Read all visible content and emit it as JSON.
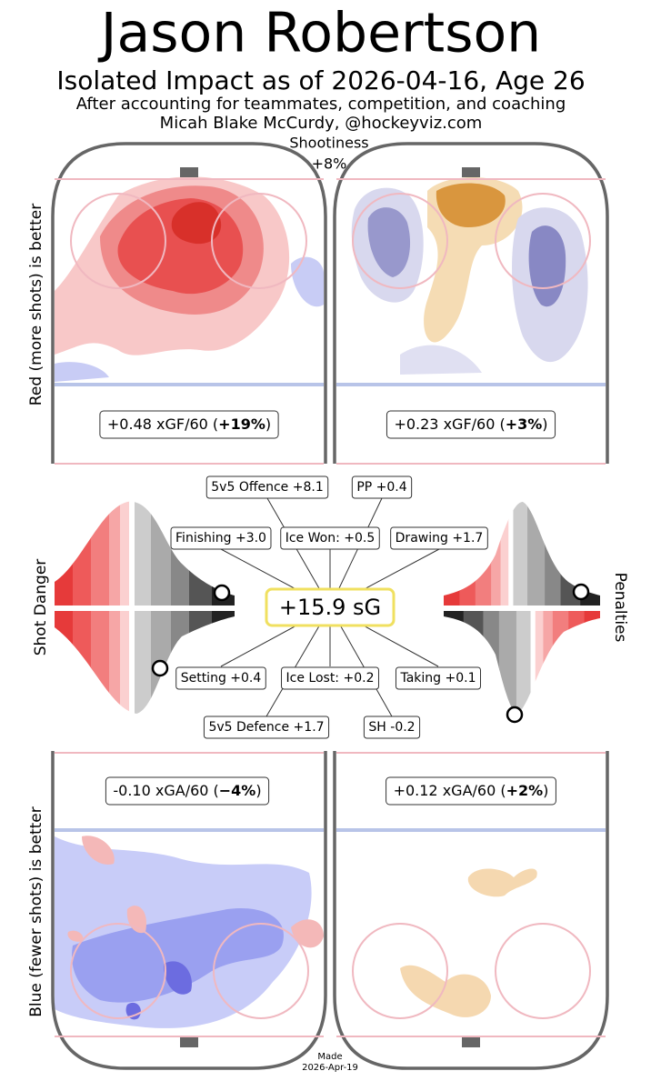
{
  "header": {
    "title": "Jason Robertson",
    "subtitle": "Isolated Impact as of 2026-04-16, Age 26",
    "note": "After accounting for teammates, competition, and coaching",
    "credit": "Micah Blake McCurdy, @hockeyviz.com"
  },
  "shootiness": {
    "label": "Shootiness",
    "value": "+8%"
  },
  "side_labels": {
    "offence": "Red (more shots) is better",
    "defence": "Blue (fewer shots) is better",
    "left": "Shot Danger",
    "right": "Penalties"
  },
  "rinks": [
    {
      "prefix": "+0.48 xGF/60 (",
      "bold": "+19%",
      "suffix": ")"
    },
    {
      "prefix": "+0.23 xGF/60 (",
      "bold": "+3%",
      "suffix": ")"
    },
    {
      "prefix": "-0.10 xGA/60 (",
      "bold": "−4%",
      "suffix": ")"
    },
    {
      "prefix": "+0.12 xGA/60 (",
      "bold": "+2%",
      "suffix": ")"
    }
  ],
  "center": "+15.9 sG",
  "components": [
    "5v5 Offence +8.1",
    "PP +0.4",
    "Finishing +3.0",
    "Ice Won: +0.5",
    "Drawing +1.7",
    "Setting +0.4",
    "Ice Lost: +0.2",
    "Taking +0.1",
    "5v5 Defence +1.7",
    "SH -0.2"
  ],
  "footer": {
    "made": "Made",
    "date": "2026-Apr-19"
  }
}
